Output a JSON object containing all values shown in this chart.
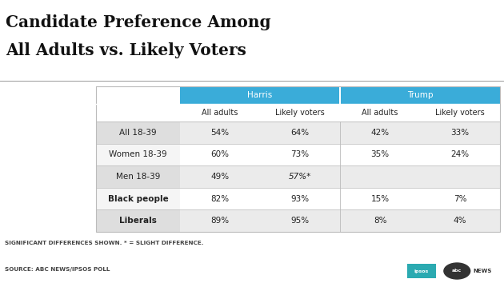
{
  "title_line1": "Candidate Preference Among",
  "title_line2": "All Adults vs. Likely Voters",
  "header1": "Harris",
  "header2": "Trump",
  "subheaders": [
    "All adults",
    "Likely voters",
    "All adults",
    "Likely voters"
  ],
  "row_labels": [
    "All 18-39",
    "Women 18-39",
    "Men 18-39",
    "Black people",
    "Liberals"
  ],
  "cell_data": [
    [
      "54%",
      "64%",
      "42%",
      "33%"
    ],
    [
      "60%",
      "73%",
      "35%",
      "24%"
    ],
    [
      "49%",
      "57%*",
      "",
      ""
    ],
    [
      "82%",
      "93%",
      "15%",
      "7%"
    ],
    [
      "89%",
      "95%",
      "8%",
      "4%"
    ]
  ],
  "row_label_bold": [
    false,
    false,
    false,
    true,
    true
  ],
  "footnote": "SIGNIFICANT DIFFERENCES SHOWN. * = SLIGHT DIFFERENCE.",
  "source": "SOURCE: ABC NEWS/IPSOS POLL",
  "header_bg_color": "#3AACD9",
  "header_text_color": "#FFFFFF",
  "row_odd_bg": "#EBEBEB",
  "row_even_bg": "#FFFFFF",
  "row_label_bg_odd": "#DEDEDE",
  "row_label_bg_even": "#F5F5F5",
  "grid_color": "#BBBBBB",
  "bg_color": "#FFFFFF",
  "title_color": "#111111",
  "footnote_color": "#444444",
  "source_color": "#444444",
  "title_fontsize": 14.5,
  "header_fontsize": 7.5,
  "subheader_fontsize": 7.0,
  "cell_fontsize": 7.5,
  "label_fontsize": 7.5,
  "footnote_fontsize": 5.2,
  "source_fontsize": 5.2
}
